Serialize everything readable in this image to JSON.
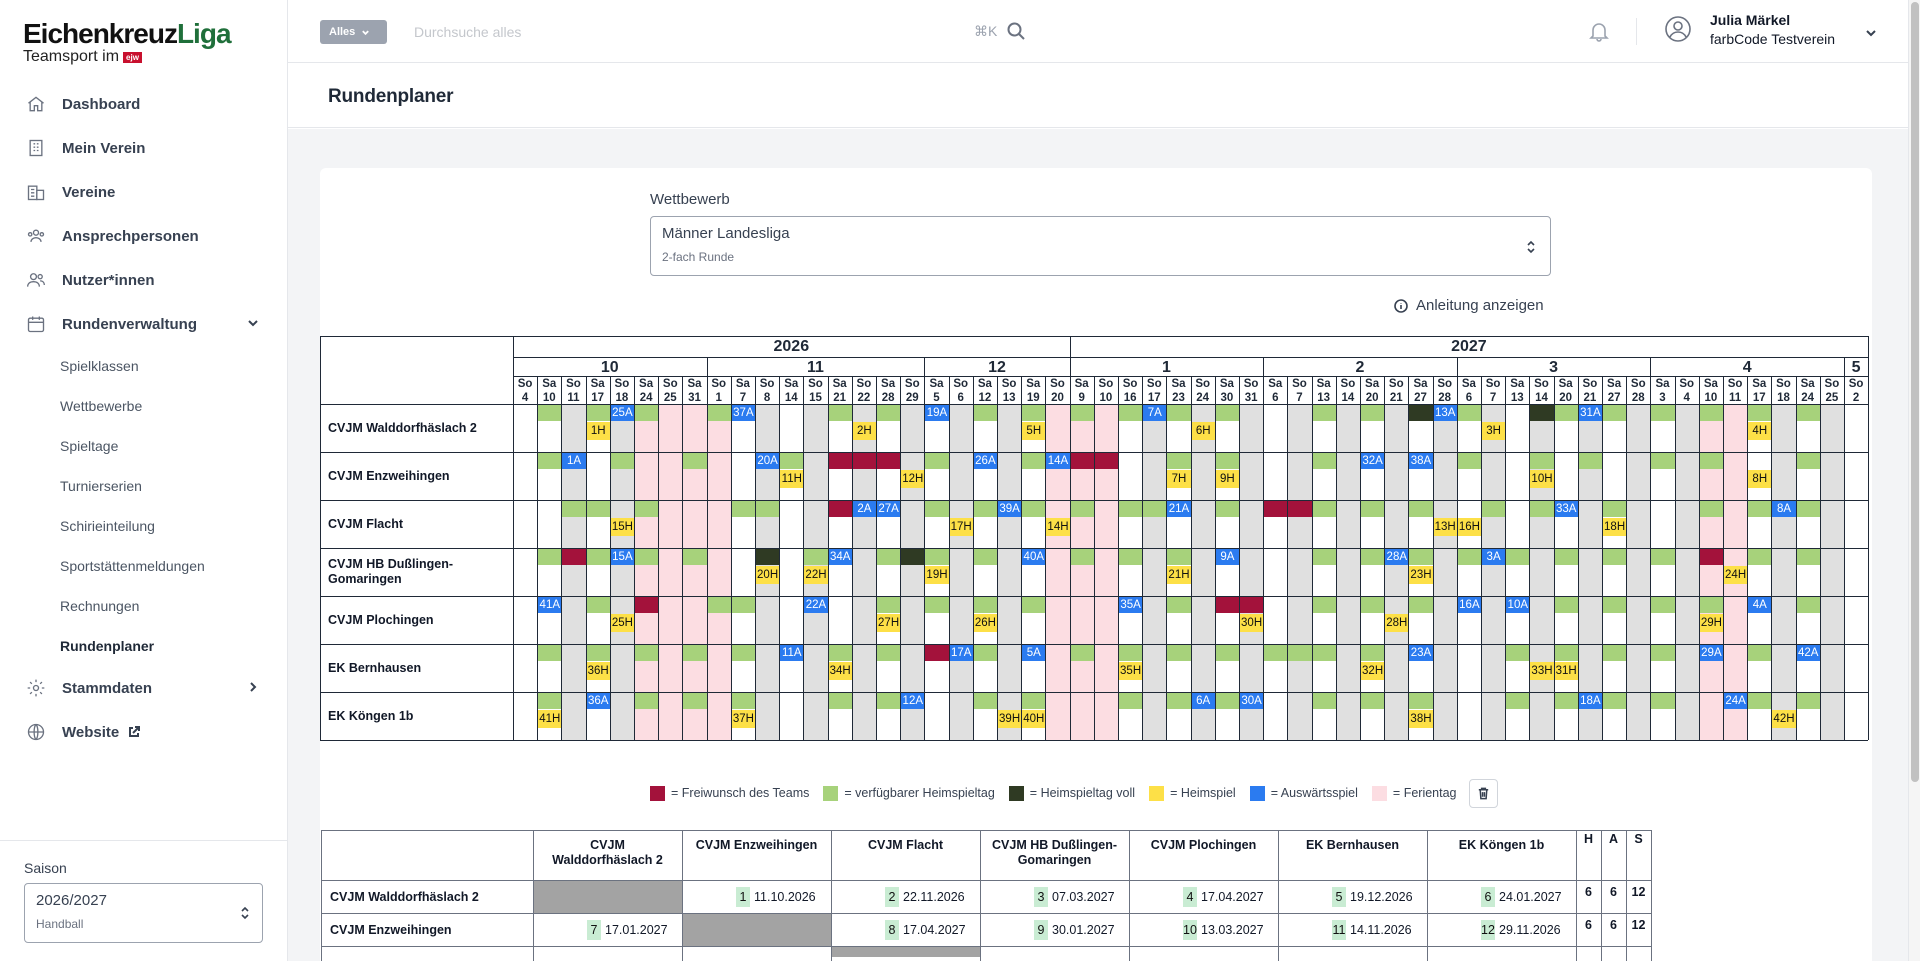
{
  "sidebar": {
    "logo": {
      "part1": "Eichenkreuz",
      "part2": "Liga",
      "tagline": "Teamsport im",
      "badge": "ejw"
    },
    "nav": [
      {
        "label": "Dashboard",
        "icon": "home-icon"
      },
      {
        "label": "Mein Verein",
        "icon": "building-icon"
      },
      {
        "label": "Vereine",
        "icon": "buildings-icon"
      },
      {
        "label": "Ansprechpersonen",
        "icon": "contacts-icon"
      },
      {
        "label": "Nutzer*innen",
        "icon": "users-icon"
      },
      {
        "label": "Rundenverwaltung",
        "icon": "calendar-icon",
        "expanded": true
      }
    ],
    "subnav": [
      "Spielklassen",
      "Wettbewerbe",
      "Spieltage",
      "Turnierserien",
      "Schirieinteilung",
      "Sportstättenmeldungen",
      "Rechnungen",
      "Rundenplaner"
    ],
    "subnav_active": "Rundenplaner",
    "nav_after": [
      {
        "label": "Stammdaten",
        "icon": "gear-icon"
      },
      {
        "label": "Website",
        "icon": "globe-icon"
      }
    ],
    "season": {
      "label": "Saison",
      "value": "2026/2027",
      "sub": "Handball"
    }
  },
  "header": {
    "scope": "Alles",
    "search_placeholder": "Durchsuche alles",
    "shortcut": "⌘K",
    "user_name": "Julia Märkel",
    "user_club": "farbCode Testverein"
  },
  "page": {
    "title": "Rundenplaner",
    "competition_label": "Wettbewerb",
    "competition_value": "Männer Landesliga",
    "competition_sub": "2-fach Runde",
    "help": "Anleitung anzeigen"
  },
  "colors": {
    "wish": "#a3123b",
    "available": "#a7d27b",
    "full": "#2f3a23",
    "home": "#fde047",
    "away": "#2b7bf0",
    "holiday": "#fcdde2",
    "gray": "#e0e0e0"
  },
  "calendar": {
    "years": [
      {
        "label": "2026",
        "from": 0,
        "span": 23
      },
      {
        "label": "2027",
        "from": 23,
        "span": 33
      }
    ],
    "months": [
      {
        "label": "10",
        "span": 8
      },
      {
        "label": "11",
        "span": 9
      },
      {
        "label": "12",
        "span": 6
      },
      {
        "label": "1",
        "span": 8
      },
      {
        "label": "2",
        "span": 8
      },
      {
        "label": "3",
        "span": 8
      },
      {
        "label": "4",
        "span": 8
      },
      {
        "label": "5",
        "span": 1
      }
    ],
    "days": [
      [
        "So",
        "4"
      ],
      [
        "Sa",
        "10"
      ],
      [
        "So",
        "11"
      ],
      [
        "Sa",
        "17"
      ],
      [
        "So",
        "18"
      ],
      [
        "Sa",
        "24"
      ],
      [
        "So",
        "25"
      ],
      [
        "Sa",
        "31"
      ],
      [
        "So",
        "1"
      ],
      [
        "Sa",
        "7"
      ],
      [
        "So",
        "8"
      ],
      [
        "Sa",
        "14"
      ],
      [
        "So",
        "15"
      ],
      [
        "Sa",
        "21"
      ],
      [
        "So",
        "22"
      ],
      [
        "Sa",
        "28"
      ],
      [
        "So",
        "29"
      ],
      [
        "Sa",
        "5"
      ],
      [
        "So",
        "6"
      ],
      [
        "Sa",
        "12"
      ],
      [
        "So",
        "13"
      ],
      [
        "Sa",
        "19"
      ],
      [
        "So",
        "20"
      ],
      [
        "Sa",
        "9"
      ],
      [
        "So",
        "10"
      ],
      [
        "So",
        "16"
      ],
      [
        "So",
        "17"
      ],
      [
        "Sa",
        "23"
      ],
      [
        "So",
        "24"
      ],
      [
        "Sa",
        "30"
      ],
      [
        "So",
        "31"
      ],
      [
        "Sa",
        "6"
      ],
      [
        "So",
        "7"
      ],
      [
        "Sa",
        "13"
      ],
      [
        "So",
        "14"
      ],
      [
        "Sa",
        "20"
      ],
      [
        "So",
        "21"
      ],
      [
        "Sa",
        "27"
      ],
      [
        "So",
        "28"
      ],
      [
        "Sa",
        "6"
      ],
      [
        "So",
        "7"
      ],
      [
        "Sa",
        "13"
      ],
      [
        "So",
        "14"
      ],
      [
        "Sa",
        "20"
      ],
      [
        "So",
        "21"
      ],
      [
        "Sa",
        "27"
      ],
      [
        "So",
        "28"
      ],
      [
        "Sa",
        "3"
      ],
      [
        "So",
        "4"
      ],
      [
        "Sa",
        "10"
      ],
      [
        "So",
        "11"
      ],
      [
        "Sa",
        "17"
      ],
      [
        "So",
        "18"
      ],
      [
        "Sa",
        "24"
      ],
      [
        "So",
        "25"
      ],
      [
        "So",
        "2"
      ]
    ],
    "gray_columns": [
      2,
      4,
      6,
      10,
      12,
      14,
      16,
      18,
      20,
      22,
      26,
      28,
      30,
      32,
      34,
      36,
      38,
      40,
      42,
      44,
      46,
      48,
      52,
      54
    ],
    "holiday_columns": [
      5,
      6,
      7,
      8,
      22,
      23,
      24,
      49,
      50
    ],
    "teams": [
      {
        "name": "CVJM Walddorfhäslach 2",
        "avail": [
          1,
          3,
          5,
          8,
          9,
          13,
          15,
          17,
          19,
          21,
          23,
          25,
          27,
          29,
          33,
          35,
          37,
          39,
          42,
          43,
          45,
          47,
          49,
          51,
          53
        ],
        "wish": [],
        "full": [
          37,
          42
        ],
        "home": [
          [
            3,
            "1H"
          ],
          [
            14,
            "2H"
          ],
          [
            40,
            "3H"
          ],
          [
            28,
            "6H"
          ],
          [
            21,
            "5H"
          ],
          [
            51,
            "4H"
          ]
        ],
        "away": [
          [
            4,
            "25A"
          ],
          [
            9,
            "37A"
          ],
          [
            17,
            "19A"
          ],
          [
            26,
            "7A"
          ],
          [
            38,
            "13A"
          ],
          [
            44,
            "31A"
          ]
        ]
      },
      {
        "name": "CVJM Enzweihingen",
        "avail": [
          1,
          4,
          7,
          11,
          15,
          17,
          21,
          24,
          27,
          29,
          33,
          35,
          37,
          39,
          42,
          44,
          47,
          49,
          53
        ],
        "wish": [
          13,
          14,
          15,
          23,
          24
        ],
        "full": [],
        "home": [
          [
            11,
            "11H"
          ],
          [
            16,
            "12H"
          ],
          [
            27,
            "7H"
          ],
          [
            29,
            "9H"
          ],
          [
            42,
            "10H"
          ],
          [
            51,
            "8H"
          ]
        ],
        "away": [
          [
            2,
            "1A"
          ],
          [
            10,
            "20A"
          ],
          [
            19,
            "26A"
          ],
          [
            22,
            "14A"
          ],
          [
            35,
            "32A"
          ],
          [
            37,
            "38A"
          ]
        ]
      },
      {
        "name": "CVJM Flacht",
        "avail": [
          2,
          3,
          5,
          9,
          10,
          15,
          17,
          19,
          21,
          23,
          25,
          26,
          29,
          33,
          35,
          37,
          40,
          42,
          43,
          45,
          49,
          51,
          53
        ],
        "wish": [
          13,
          31,
          32
        ],
        "full": [],
        "home": [
          [
            4,
            "15H"
          ],
          [
            18,
            "17H"
          ],
          [
            22,
            "14H"
          ],
          [
            38,
            "13H"
          ],
          [
            39,
            "16H"
          ],
          [
            45,
            "18H"
          ]
        ],
        "away": [
          [
            14,
            "2A"
          ],
          [
            15,
            "27A"
          ],
          [
            20,
            "39A"
          ],
          [
            27,
            "21A"
          ],
          [
            43,
            "33A"
          ],
          [
            52,
            "8A"
          ]
        ]
      },
      {
        "name": "CVJM HB Dußlingen-Gomaringen",
        "avail": [
          1,
          3,
          5,
          7,
          10,
          12,
          15,
          17,
          19,
          21,
          23,
          25,
          27,
          29,
          33,
          35,
          37,
          39,
          41,
          43,
          45,
          47,
          51,
          53
        ],
        "wish": [
          2,
          49
        ],
        "full": [
          2,
          10,
          16
        ],
        "home": [
          [
            10,
            "20H"
          ],
          [
            12,
            "22H"
          ],
          [
            17,
            "19H"
          ],
          [
            27,
            "21H"
          ],
          [
            37,
            "23H"
          ],
          [
            50,
            "24H"
          ]
        ],
        "away": [
          [
            4,
            "15A"
          ],
          [
            13,
            "34A"
          ],
          [
            21,
            "40A"
          ],
          [
            29,
            "9A"
          ],
          [
            36,
            "28A"
          ],
          [
            40,
            "3A"
          ]
        ]
      },
      {
        "name": "CVJM Plochingen",
        "avail": [
          1,
          3,
          5,
          8,
          9,
          15,
          17,
          19,
          21,
          25,
          27,
          29,
          33,
          35,
          37,
          39,
          43,
          45,
          47,
          49,
          51,
          53
        ],
        "wish": [
          5,
          29,
          30
        ],
        "full": [],
        "home": [
          [
            4,
            "25H"
          ],
          [
            15,
            "27H"
          ],
          [
            19,
            "26H"
          ],
          [
            30,
            "30H"
          ],
          [
            36,
            "28H"
          ],
          [
            49,
            "29H"
          ]
        ],
        "away": [
          [
            1,
            "41A"
          ],
          [
            12,
            "22A"
          ],
          [
            25,
            "35A"
          ],
          [
            39,
            "16A"
          ],
          [
            41,
            "10A"
          ],
          [
            51,
            "4A"
          ]
        ]
      },
      {
        "name": "EK Bernhausen",
        "avail": [
          1,
          3,
          5,
          7,
          9,
          13,
          15,
          19,
          21,
          23,
          25,
          27,
          29,
          31,
          32,
          33,
          35,
          37,
          41,
          43,
          45,
          47,
          49,
          51,
          53
        ],
        "wish": [
          17
        ],
        "full": [],
        "home": [
          [
            3,
            "36H"
          ],
          [
            13,
            "34H"
          ],
          [
            25,
            "35H"
          ],
          [
            35,
            "32H"
          ],
          [
            42,
            "33H"
          ],
          [
            43,
            "31H"
          ]
        ],
        "away": [
          [
            11,
            "11A"
          ],
          [
            18,
            "17A"
          ],
          [
            21,
            "5A"
          ],
          [
            37,
            "23A"
          ],
          [
            49,
            "29A"
          ],
          [
            53,
            "42A"
          ]
        ]
      },
      {
        "name": "EK Köngen 1b",
        "avail": [
          1,
          3,
          5,
          7,
          9,
          13,
          15,
          19,
          21,
          25,
          27,
          29,
          33,
          35,
          37,
          41,
          43,
          45,
          47,
          51,
          53
        ],
        "wish": [],
        "full": [],
        "home": [
          [
            1,
            "41H"
          ],
          [
            9,
            "37H"
          ],
          [
            20,
            "39H"
          ],
          [
            21,
            "40H"
          ],
          [
            37,
            "38H"
          ],
          [
            52,
            "42H"
          ]
        ],
        "away": [
          [
            3,
            "36A"
          ],
          [
            16,
            "12A"
          ],
          [
            28,
            "6A"
          ],
          [
            30,
            "30A"
          ],
          [
            44,
            "18A"
          ],
          [
            50,
            "24A"
          ]
        ]
      }
    ]
  },
  "legend": [
    {
      "color": "#a3123b",
      "label": "= Freiwunsch des Teams"
    },
    {
      "color": "#a7d27b",
      "label": "= verfügbarer Heimspieltag"
    },
    {
      "color": "#2f3a23",
      "label": "= Heimspieltag voll"
    },
    {
      "color": "#fde047",
      "label": "= Heimspiel"
    },
    {
      "color": "#2b7bf0",
      "label": "= Auswärtsspiel"
    },
    {
      "color": "#fcdde2",
      "label": "= Ferientag"
    }
  ],
  "matrix": {
    "columns": [
      "CVJM Walddorfhäslach 2",
      "CVJM Enzweihingen",
      "CVJM Flacht",
      "CVJM HB Dußlingen-Gomaringen",
      "CVJM Plochingen",
      "EK Bernhausen",
      "EK Köngen 1b"
    ],
    "stat_headers": [
      "H",
      "A",
      "S"
    ],
    "rows": [
      {
        "label": "CVJM Walddorfhäslach 2",
        "self": 0,
        "cells": [
          null,
          [
            "1",
            "11.10.2026"
          ],
          [
            "2",
            "22.11.2026"
          ],
          [
            "3",
            "07.03.2027"
          ],
          [
            "4",
            "17.04.2027"
          ],
          [
            "5",
            "19.12.2026"
          ],
          [
            "6",
            "24.01.2027"
          ]
        ],
        "stats": [
          "6",
          "6",
          "12"
        ]
      },
      {
        "label": "CVJM Enzweihingen",
        "self": 1,
        "cells": [
          [
            "7",
            "17.01.2027"
          ],
          null,
          [
            "8",
            "17.04.2027"
          ],
          [
            "9",
            "30.01.2027"
          ],
          [
            "10",
            "13.03.2027"
          ],
          [
            "11",
            "14.11.2026"
          ],
          [
            "12",
            "29.11.2026"
          ]
        ],
        "stats": [
          "6",
          "6",
          "12"
        ]
      }
    ]
  }
}
